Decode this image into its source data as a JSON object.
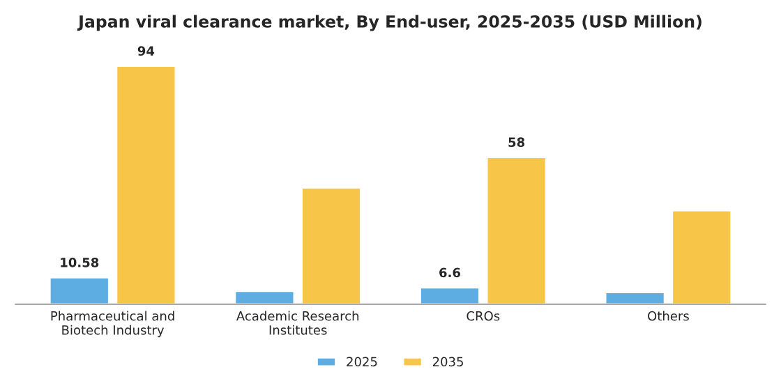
{
  "chart_data": {
    "type": "bar",
    "title": "Japan viral clearance market, By End-user, 2025-2035 (USD Million)",
    "categories": [
      "Pharmaceutical and\nBiotech Industry",
      "Academic Research\nInstitutes",
      "CROs",
      "Others"
    ],
    "series": [
      {
        "name": "2025",
        "color": "#5dade2",
        "values": [
          10.58,
          5.2,
          6.6,
          4.7
        ],
        "value_labels": [
          "10.58",
          null,
          "6.6",
          null
        ]
      },
      {
        "name": "2035",
        "color": "#f7c548",
        "values": [
          94,
          46,
          58,
          37
        ],
        "value_labels": [
          "94",
          null,
          "58",
          null
        ]
      }
    ],
    "legend": "bottom",
    "grid": false
  }
}
